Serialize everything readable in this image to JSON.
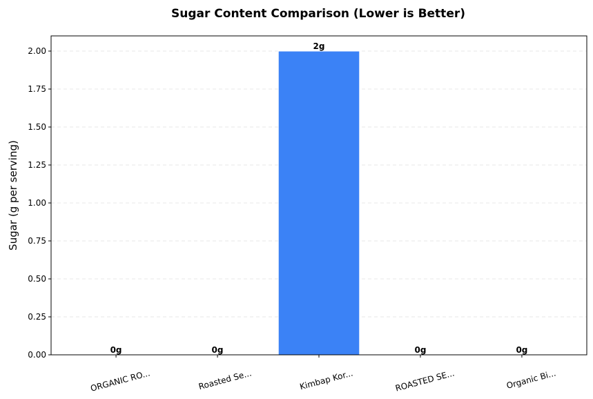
{
  "chart_data": {
    "type": "bar",
    "title": "Sugar Content Comparison (Lower is Better)",
    "xlabel": "",
    "ylabel": "Sugar (g per serving)",
    "categories": [
      "ORGANIC RO...",
      "Roasted Se...",
      "Kimbap Kor...",
      "ROASTED SE...",
      "Organic Bi..."
    ],
    "values": [
      0,
      0,
      2,
      0,
      0
    ],
    "data_labels": [
      "0g",
      "0g",
      "2g",
      "0g",
      "0g"
    ],
    "ylim": [
      0,
      2.1
    ],
    "yticks": [
      0,
      0.25,
      0.5,
      0.75,
      1.0,
      1.25,
      1.5,
      1.75,
      2.0
    ],
    "ytick_labels": [
      "0.00",
      "0.25",
      "0.50",
      "0.75",
      "1.00",
      "1.25",
      "1.50",
      "1.75",
      "2.00"
    ],
    "grid": "y-dashed",
    "bar_color": "#3b82f6"
  }
}
